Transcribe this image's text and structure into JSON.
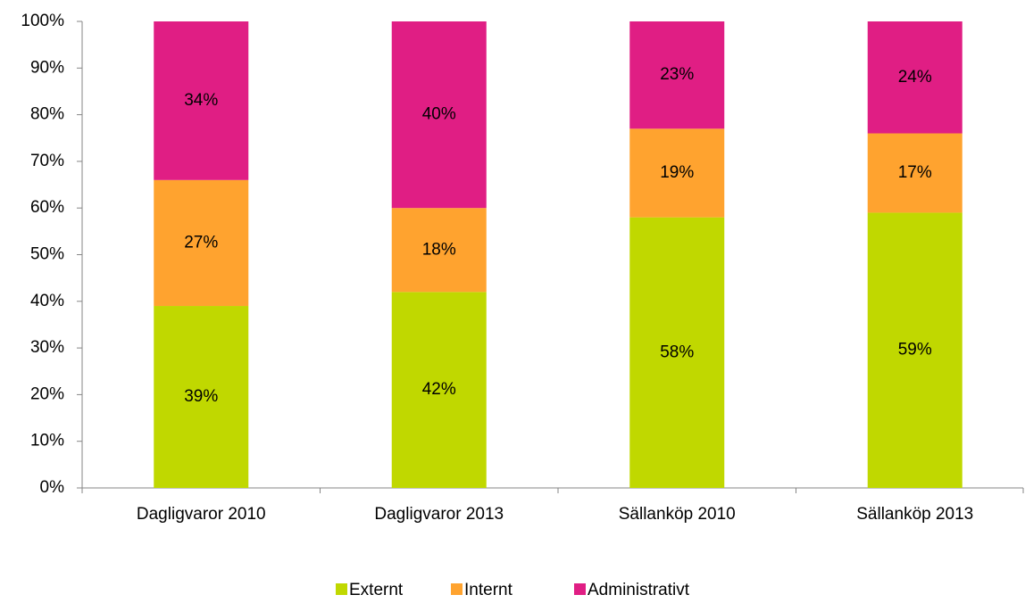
{
  "chart_data": {
    "type": "stacked_bar",
    "categories": [
      "Dagligvaror 2010",
      "Dagligvaror 2013",
      "Sällanköp 2010",
      "Sällanköp 2013"
    ],
    "series": [
      {
        "name": "Externt",
        "color": "#c0d800",
        "values": [
          39,
          42,
          58,
          59
        ],
        "value_labels": [
          "39%",
          "42%",
          "58%",
          "59%"
        ]
      },
      {
        "name": "Internt",
        "color": "#ffa32f",
        "values": [
          27,
          18,
          19,
          17
        ],
        "value_labels": [
          "27%",
          "18%",
          "19%",
          "17%"
        ]
      },
      {
        "name": "Administrativt",
        "color": "#e01e84",
        "values": [
          34,
          40,
          23,
          24
        ],
        "value_labels": [
          "34%",
          "40%",
          "23%",
          "24%"
        ]
      }
    ],
    "ylim": [
      0,
      100
    ],
    "yticks": [
      {
        "value": 0,
        "label": "0%"
      },
      {
        "value": 10,
        "label": "10%"
      },
      {
        "value": 20,
        "label": "20%"
      },
      {
        "value": 30,
        "label": "30%"
      },
      {
        "value": 40,
        "label": "40%"
      },
      {
        "value": 50,
        "label": "50%"
      },
      {
        "value": 60,
        "label": "60%"
      },
      {
        "value": 70,
        "label": "70%"
      },
      {
        "value": 80,
        "label": "80%"
      },
      {
        "value": 90,
        "label": "90%"
      },
      {
        "value": 100,
        "label": "100%"
      }
    ],
    "grid": false,
    "legend": "bottom"
  }
}
